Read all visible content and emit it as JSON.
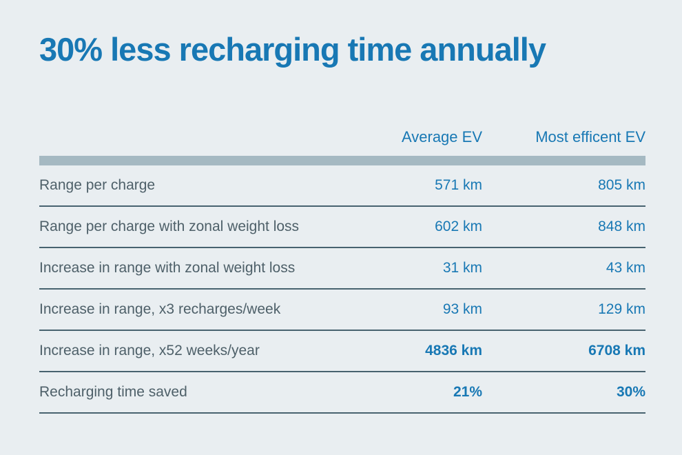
{
  "title": "30% less recharging time annually",
  "theme": {
    "background": "#e9eef1",
    "accent_blue": "#1878b4",
    "label_slate": "#4e6069",
    "separator_color": "#47626f",
    "header_bar_color": "#a5b9c2"
  },
  "table": {
    "columns": [
      "",
      "Average EV",
      "Most efficent EV"
    ],
    "rows": [
      {
        "label": "Range per charge",
        "average_ev": "571 km",
        "most_efficient_ev": "805 km",
        "emphasis": false
      },
      {
        "label": "Range per charge with zonal weight loss",
        "average_ev": "602 km",
        "most_efficient_ev": "848 km",
        "emphasis": false
      },
      {
        "label": "Increase in range with zonal weight loss",
        "average_ev": "31 km",
        "most_efficient_ev": "43 km",
        "emphasis": false
      },
      {
        "label": "Increase in range, x3 recharges/week",
        "average_ev": "93 km",
        "most_efficient_ev": "129 km",
        "emphasis": false
      },
      {
        "label": "Increase in range, x52 weeks/year",
        "average_ev": "4836 km",
        "most_efficient_ev": "6708 km",
        "emphasis": true
      },
      {
        "label": "Recharging time saved",
        "average_ev": "21%",
        "most_efficient_ev": "30%",
        "emphasis": true
      }
    ]
  },
  "chart_data": {
    "type": "table",
    "title": "30% less recharging time annually",
    "columns": [
      "",
      "Average EV",
      "Most efficent EV"
    ],
    "rows": [
      [
        "Range per charge",
        "571 km",
        "805 km"
      ],
      [
        "Range per charge with zonal weight loss",
        "602 km",
        "848 km"
      ],
      [
        "Increase in range with zonal weight loss",
        "31 km",
        "43 km"
      ],
      [
        "Increase in range, x3 recharges/week",
        "93 km",
        "129 km"
      ],
      [
        "Increase in range, x52 weeks/year",
        "4836 km",
        "6708 km"
      ],
      [
        "Recharging time saved",
        "21%",
        "30%"
      ]
    ],
    "series": [
      {
        "name": "Average EV",
        "values": [
          571,
          602,
          31,
          93,
          4836,
          21
        ],
        "units": [
          "km",
          "km",
          "km",
          "km",
          "km",
          "%"
        ]
      },
      {
        "name": "Most efficent EV",
        "values": [
          805,
          848,
          43,
          129,
          6708,
          30
        ],
        "units": [
          "km",
          "km",
          "km",
          "km",
          "km",
          "%"
        ]
      }
    ],
    "emphasized_row_indexes": [
      4,
      5
    ]
  }
}
